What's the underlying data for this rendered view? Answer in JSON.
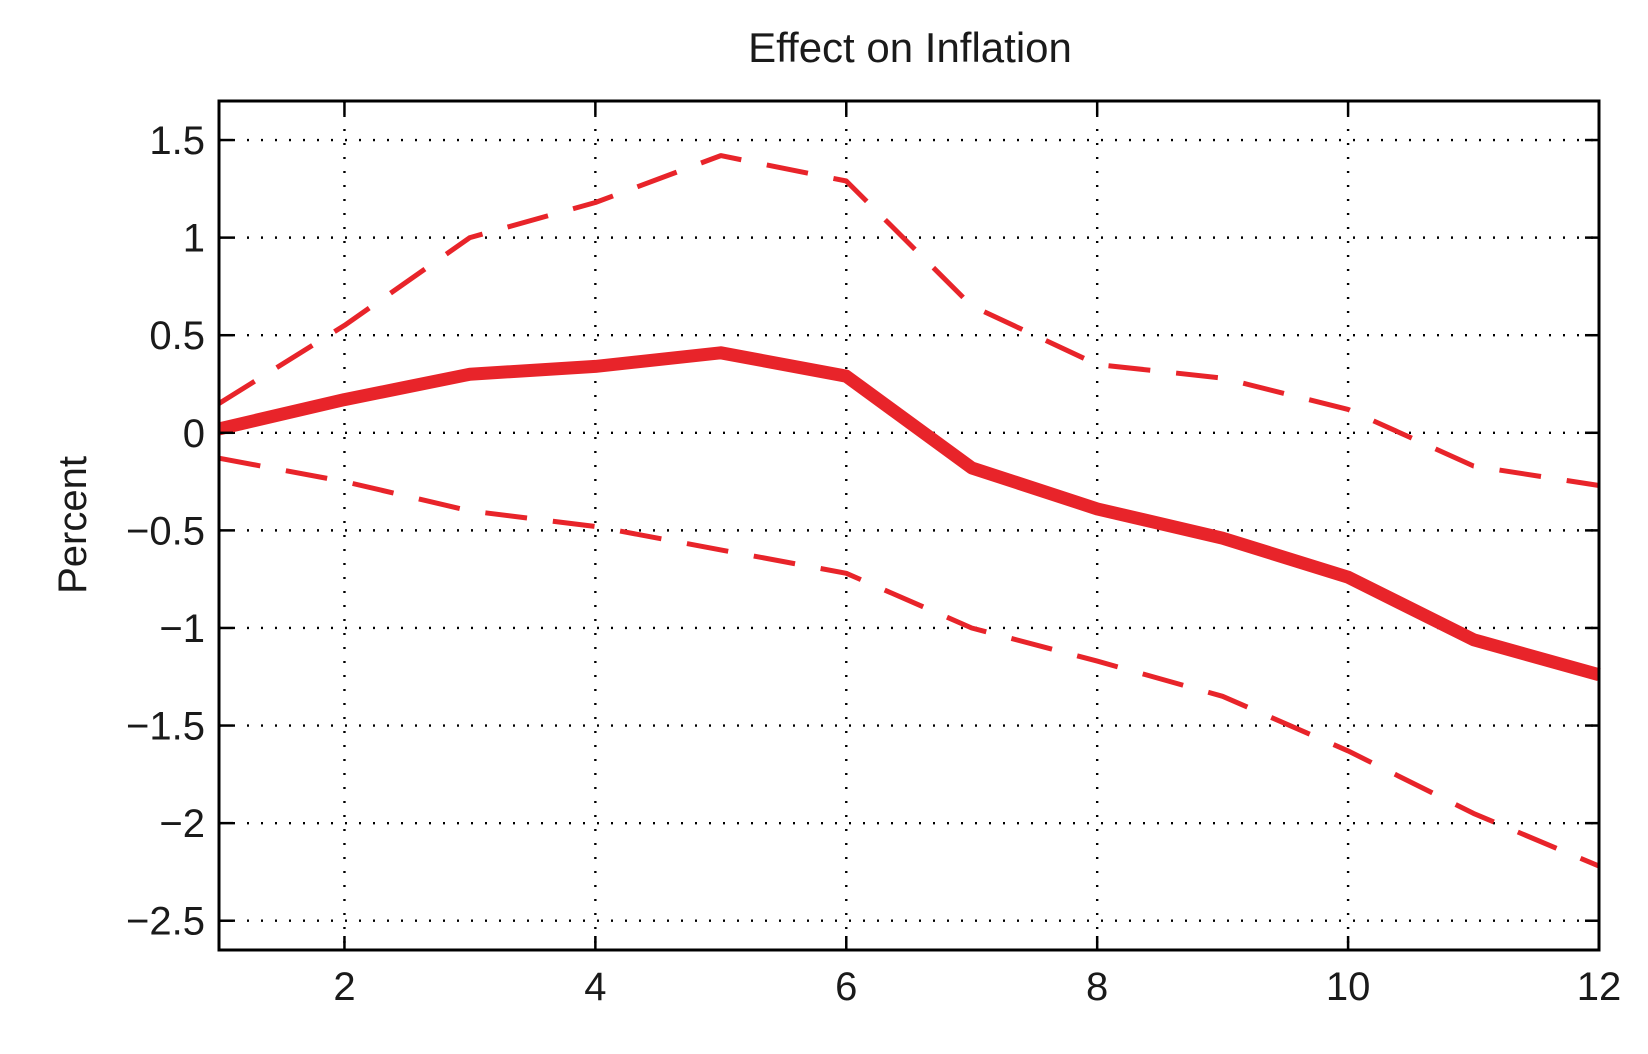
{
  "chart_data": {
    "type": "line",
    "title": "Effect on Inflation",
    "xlabel": "",
    "ylabel": "Percent",
    "xlim": [
      1,
      12
    ],
    "ylim": [
      -2.65,
      1.7
    ],
    "xticks": [
      2,
      4,
      6,
      8,
      10,
      12
    ],
    "xtick_labels": [
      "2",
      "4",
      "6",
      "8",
      "10",
      "12"
    ],
    "yticks": [
      1.5,
      1,
      0.5,
      0,
      -0.5,
      -1,
      -1.5,
      -2,
      -2.5
    ],
    "ytick_labels": [
      "1.5",
      "1",
      "0.5",
      "0",
      "−0.5",
      "−1",
      "−1.5",
      "−2",
      "−2.5"
    ],
    "grid": true,
    "x": [
      1,
      2,
      3,
      4,
      5,
      6,
      7,
      8,
      9,
      10,
      11,
      12
    ],
    "series": [
      {
        "style": "solid",
        "color": "#e8242a",
        "values": [
          0.02,
          0.17,
          0.3,
          0.34,
          0.41,
          0.29,
          -0.18,
          -0.39,
          -0.54,
          -0.74,
          -1.06,
          -1.24
        ]
      },
      {
        "style": "dashed",
        "color": "#e8242a",
        "values": [
          0.15,
          0.55,
          1.0,
          1.18,
          1.42,
          1.29,
          0.65,
          0.35,
          0.28,
          0.12,
          -0.17,
          -0.27
        ]
      },
      {
        "style": "dashed",
        "color": "#e8242a",
        "values": [
          -0.13,
          -0.25,
          -0.4,
          -0.48,
          -0.6,
          -0.72,
          -1.0,
          -1.17,
          -1.35,
          -1.63,
          -1.95,
          -2.22
        ]
      }
    ]
  }
}
